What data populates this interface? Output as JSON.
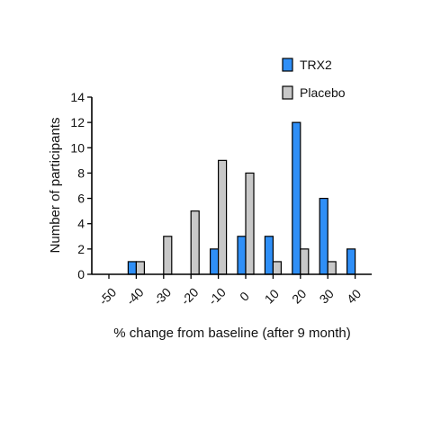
{
  "chart_data": {
    "type": "bar",
    "title": "",
    "xlabel": "% change from baseline (after 9 month)",
    "ylabel": "Number of participants",
    "categories": [
      "-50",
      "-40",
      "-30",
      "-20",
      "-10",
      "0",
      "10",
      "20",
      "30",
      "40"
    ],
    "x_tick_labels": [
      "-50",
      "-40",
      "-30",
      "-20",
      "-10",
      "0",
      "10",
      "20",
      "30",
      "40"
    ],
    "y_tick_labels": [
      "0",
      "2",
      "4",
      "6",
      "8",
      "10",
      "12",
      "14"
    ],
    "ylim": [
      0,
      14
    ],
    "yticks": [
      0,
      2,
      4,
      6,
      8,
      10,
      12,
      14
    ],
    "grid": false,
    "legend_position": "top-right",
    "series": [
      {
        "name": "TRX2",
        "color": "#2f8ff7",
        "values": [
          0,
          1,
          0,
          0,
          2,
          3,
          3,
          12,
          6,
          2
        ]
      },
      {
        "name": "Placebo",
        "color": "#c8c8c8",
        "values": [
          0,
          1,
          3,
          5,
          9,
          8,
          1,
          2,
          1,
          0
        ]
      }
    ]
  }
}
